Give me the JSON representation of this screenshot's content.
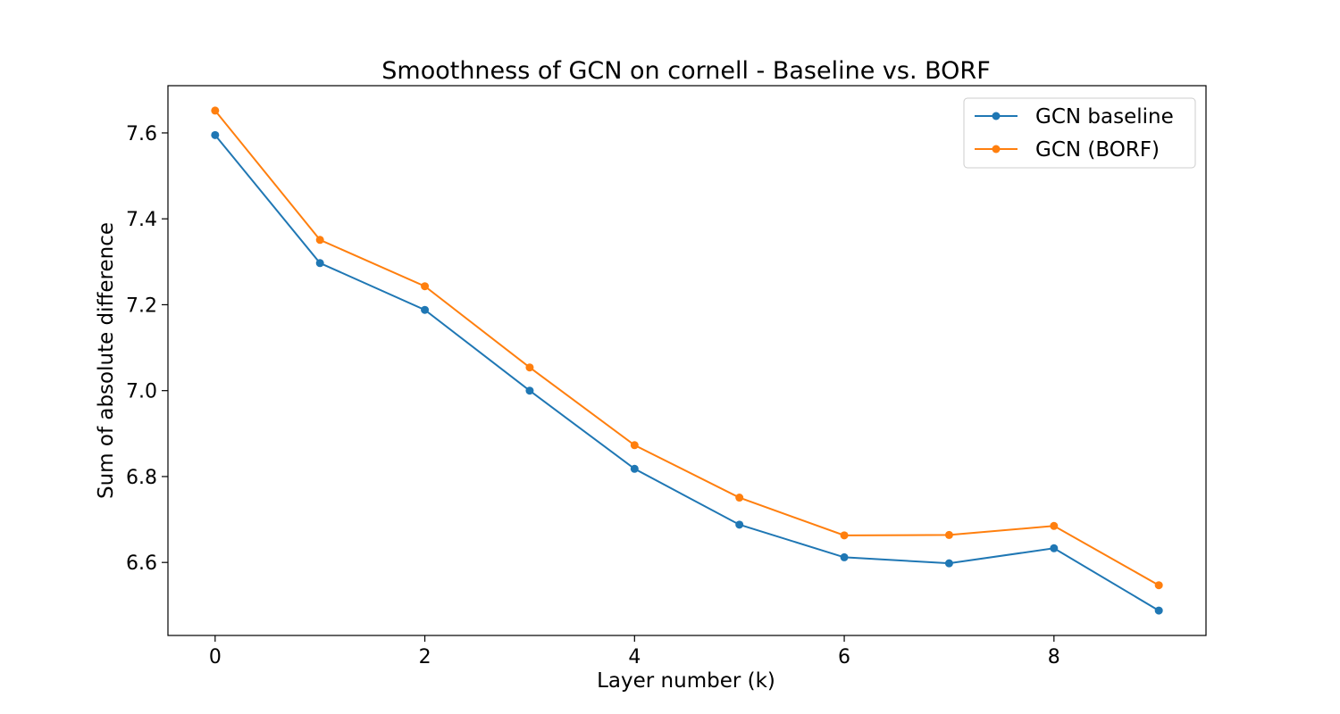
{
  "chart_data": {
    "type": "line",
    "title": "Smoothness of GCN on cornell - Baseline vs. BORF",
    "xlabel": "Layer number (k)",
    "ylabel": "Sum of absolute difference",
    "x": [
      0,
      1,
      2,
      3,
      4,
      5,
      6,
      7,
      8,
      9
    ],
    "xlim": [
      -0.45,
      9.45
    ],
    "ylim": [
      6.43,
      7.71
    ],
    "xticks": [
      0,
      2,
      4,
      6,
      8
    ],
    "yticks": [
      6.6,
      6.8,
      7.0,
      7.2,
      7.4,
      7.6
    ],
    "xtick_labels": [
      "0",
      "2",
      "4",
      "6",
      "8"
    ],
    "ytick_labels": [
      "6.6",
      "6.8",
      "7.0",
      "7.2",
      "7.4",
      "7.6"
    ],
    "grid": false,
    "legend_position": "top-right",
    "series": [
      {
        "name": "GCN baseline",
        "color": "#1f77b4",
        "values": [
          7.595,
          7.297,
          7.188,
          7.0,
          6.818,
          6.688,
          6.612,
          6.598,
          6.633,
          6.488
        ]
      },
      {
        "name": "GCN (BORF)",
        "color": "#ff7f0e",
        "values": [
          7.652,
          7.351,
          7.243,
          7.054,
          6.873,
          6.751,
          6.663,
          6.664,
          6.685,
          6.547
        ]
      }
    ]
  }
}
